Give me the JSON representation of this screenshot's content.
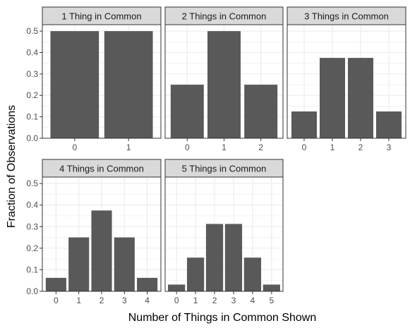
{
  "chart_data": {
    "type": "bar",
    "xlabel": "Number of Things in Common Shown",
    "ylabel": "Fraction of Observations",
    "ylim": [
      0,
      0.53
    ],
    "yticks": [
      "0.0",
      "0.1",
      "0.2",
      "0.3",
      "0.4",
      "0.5"
    ],
    "grid": true,
    "colors": {
      "bar": "#595959",
      "strip": "#d9d9d9",
      "grid": "#ebebeb",
      "frame": "#333333"
    },
    "panels": [
      {
        "title": "1 Thing in Common",
        "categories": [
          "0",
          "1"
        ],
        "values": [
          0.5,
          0.5
        ]
      },
      {
        "title": "2 Things in Common",
        "categories": [
          "0",
          "1",
          "2"
        ],
        "values": [
          0.25,
          0.5,
          0.25
        ]
      },
      {
        "title": "3 Things in Common",
        "categories": [
          "0",
          "1",
          "2",
          "3"
        ],
        "values": [
          0.125,
          0.375,
          0.375,
          0.125
        ]
      },
      {
        "title": "4 Things in Common",
        "categories": [
          "0",
          "1",
          "2",
          "3",
          "4"
        ],
        "values": [
          0.0625,
          0.25,
          0.375,
          0.25,
          0.0625
        ]
      },
      {
        "title": "5 Things in Common",
        "categories": [
          "0",
          "1",
          "2",
          "3",
          "4",
          "5"
        ],
        "values": [
          0.03125,
          0.15625,
          0.3125,
          0.3125,
          0.15625,
          0.03125
        ]
      }
    ]
  }
}
